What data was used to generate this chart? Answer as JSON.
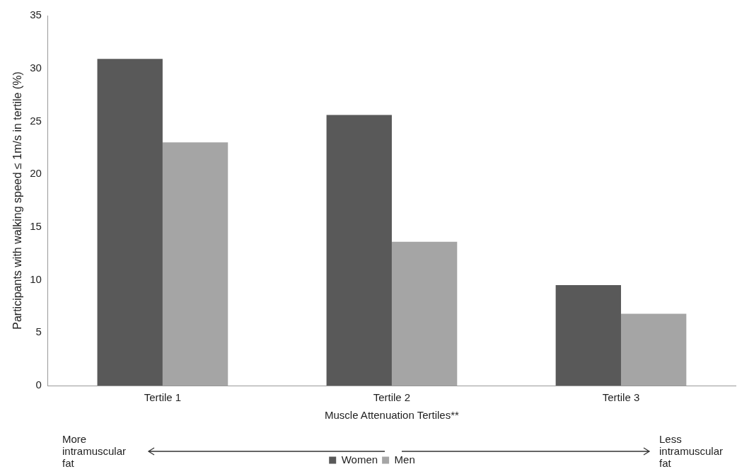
{
  "chart_data": {
    "type": "bar",
    "xlabel": "Muscle Attenuation Tertiles**",
    "ylabel": "Participants with walking speed ≤ 1m/s in tertile (%)",
    "categories": [
      "Tertile 1",
      "Tertile 2",
      "Tertile 3"
    ],
    "series": [
      {
        "name": "Women",
        "color": "#595959",
        "values": [
          30.9,
          25.6,
          9.5
        ]
      },
      {
        "name": "Men",
        "color": "#a5a5a5",
        "values": [
          23.0,
          13.6,
          6.8
        ]
      }
    ],
    "ylim": [
      0,
      35
    ],
    "yticks": [
      0,
      5,
      10,
      15,
      20,
      25,
      30,
      35
    ],
    "grid": false,
    "legend": "bottom",
    "annotations": [
      "More intramuscular fat",
      "Less intramuscular fat"
    ]
  }
}
